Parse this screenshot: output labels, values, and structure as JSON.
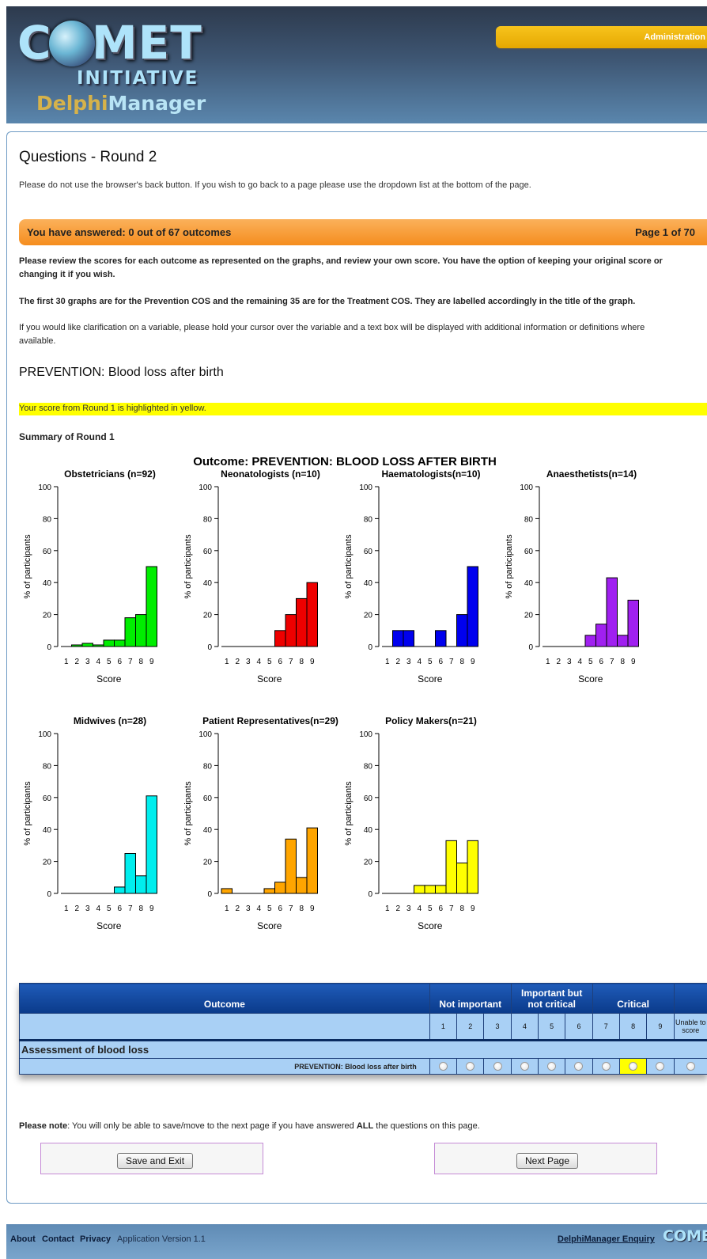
{
  "header": {
    "logo_comet": "COMET",
    "logo_initiative": "INITIATIVE",
    "logo_delphi": "Delphi",
    "logo_manager": "Manager",
    "admin_label": "Administration"
  },
  "page": {
    "title": "Questions - Round 2",
    "back_note": "Please do not use the browser's back button. If you wish to go back to a page please use the dropdown list at the bottom of the page.",
    "answered": "You have answered: 0 out of 67 outcomes",
    "page_indicator": "Page 1 of 70",
    "instr1": "Please review the scores for each outcome as represented on the graphs, and review your own score. You have the option of keeping your original score or changing it if you wish.",
    "instr2": "The first 30 graphs are for the Prevention COS and the remaining 35 are for the Treatment COS. They are labelled accordingly in the title of the graph.",
    "instr3": "If you would like clarification on a variable, please hold your cursor over the variable and a text box will be displayed with additional information or definitions where available.",
    "outcome_heading": "PREVENTION: Blood loss after birth",
    "highlight_note": "Your score from Round 1 is highlighted in yellow.",
    "summary_label": "Summary of Round 1"
  },
  "chart_data": {
    "type": "bar",
    "title": "Outcome: PREVENTION: BLOOD LOSS AFTER BIRTH",
    "categories": [
      "1",
      "2",
      "3",
      "4",
      "5",
      "6",
      "7",
      "8",
      "9"
    ],
    "xlabel": "Score",
    "ylabel": "% of participants",
    "ylim": [
      0,
      100
    ],
    "yticks": [
      "0",
      "20",
      "40",
      "60",
      "80",
      "100"
    ],
    "panels": [
      {
        "name": "Obstetricians (n=92)",
        "color": "#00ee00",
        "values": [
          0,
          1,
          2,
          1,
          4,
          4,
          18,
          20,
          50
        ]
      },
      {
        "name": "Neonatologists (n=10)",
        "color": "#ee0000",
        "values": [
          0,
          0,
          0,
          0,
          0,
          10,
          20,
          30,
          40
        ]
      },
      {
        "name": "Haematologists(n=10)",
        "color": "#0000ee",
        "values": [
          0,
          10,
          10,
          0,
          0,
          10,
          0,
          20,
          50
        ]
      },
      {
        "name": "Anaesthetists(n=14)",
        "color": "#a020f0",
        "values": [
          0,
          0,
          0,
          0,
          7,
          14,
          43,
          7,
          29
        ]
      },
      {
        "name": "Midwives (n=28)",
        "color": "#00eeee",
        "values": [
          0,
          0,
          0,
          0,
          0,
          4,
          25,
          11,
          61
        ]
      },
      {
        "name": "Patient Representatives(n=29)",
        "color": "#ffa500",
        "values": [
          3,
          0,
          0,
          0,
          3,
          7,
          34,
          10,
          41
        ]
      },
      {
        "name": "Policy Makers(n=21)",
        "color": "#ffff00",
        "values": [
          0,
          0,
          0,
          5,
          5,
          5,
          33,
          19,
          33
        ]
      }
    ]
  },
  "table": {
    "col_outcome": "Outcome",
    "groups": [
      "Not important",
      "Important but not critical",
      "Critical"
    ],
    "scores": [
      "1",
      "2",
      "3",
      "4",
      "5",
      "6",
      "7",
      "8",
      "9"
    ],
    "unable_label": "Unable to score",
    "section": "Assessment of blood loss",
    "row_label": "PREVENTION: Blood loss after birth",
    "selected_score": 8
  },
  "footer_note": {
    "lead": "Please note",
    "text_a": ": You will only be able to save/move to the next page if you have answered ",
    "all": "ALL",
    "text_b": " the questions on this page."
  },
  "buttons": {
    "save_exit": "Save and Exit",
    "next_page": "Next Page"
  },
  "footer": {
    "about": "About",
    "contact": "Contact",
    "privacy": "Privacy",
    "version": "Application Version 1.1",
    "enquiry": "DelphiManager Enquiry",
    "logo": "COMET"
  }
}
